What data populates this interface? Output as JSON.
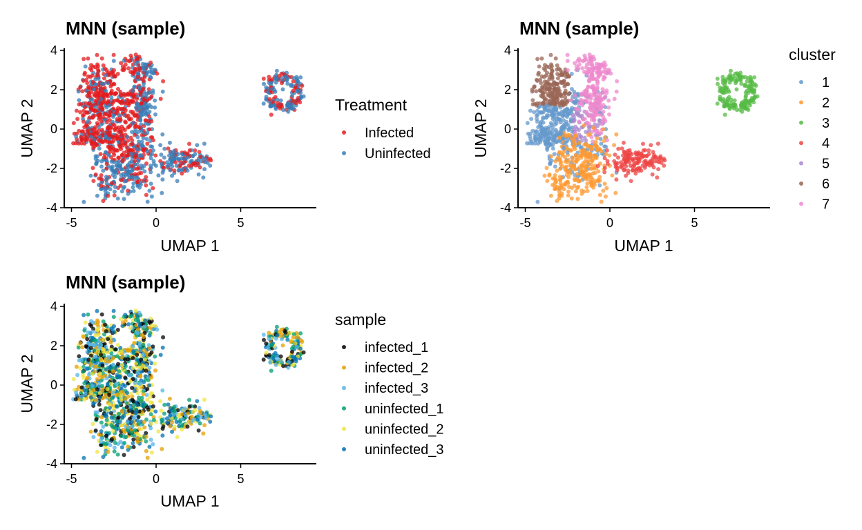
{
  "panels": [
    {
      "title": "MNN (sample)",
      "xlabel": "UMAP 1",
      "ylabel": "UMAP 2",
      "legend": {
        "title": "Treatment",
        "items": [
          {
            "label": "Infected",
            "color": "#e41a1c"
          },
          {
            "label": "Uninfected",
            "color": "#377eb8"
          }
        ]
      }
    },
    {
      "title": "MNN (sample)",
      "xlabel": "UMAP 1",
      "ylabel": "UMAP 2",
      "legend": {
        "title": "cluster",
        "items": [
          {
            "label": "1",
            "color": "#6699cc"
          },
          {
            "label": "2",
            "color": "#ff9933"
          },
          {
            "label": "3",
            "color": "#55bb44"
          },
          {
            "label": "4",
            "color": "#ee4444"
          },
          {
            "label": "5",
            "color": "#aa88cc"
          },
          {
            "label": "6",
            "color": "#996655"
          },
          {
            "label": "7",
            "color": "#ee88cc"
          }
        ]
      }
    },
    {
      "title": "MNN (sample)",
      "xlabel": "UMAP 1",
      "ylabel": "UMAP 2",
      "legend": {
        "title": "sample",
        "items": [
          {
            "label": "infected_1",
            "color": "#000000"
          },
          {
            "label": "infected_2",
            "color": "#e69f00"
          },
          {
            "label": "infected_3",
            "color": "#56b4e9"
          },
          {
            "label": "uninfected_1",
            "color": "#009e73"
          },
          {
            "label": "uninfected_2",
            "color": "#f0e442"
          },
          {
            "label": "uninfected_3",
            "color": "#0072b2"
          }
        ]
      }
    }
  ],
  "chart_data": [
    {
      "type": "scatter",
      "title": "MNN (sample)",
      "xlabel": "UMAP 1",
      "ylabel": "UMAP 2",
      "xlim": [
        -5,
        9.3
      ],
      "ylim": [
        -4.1,
        4.1
      ],
      "xticks": [
        -5,
        0,
        5
      ],
      "yticks": [
        -4,
        -2,
        0,
        2,
        4
      ],
      "color_by": "Treatment",
      "legend_position": "right",
      "grid": false,
      "series": [
        {
          "name": "Infected",
          "color": "#e41a1c"
        },
        {
          "name": "Uninfected",
          "color": "#377eb8"
        }
      ]
    },
    {
      "type": "scatter",
      "title": "MNN (sample)",
      "xlabel": "UMAP 1",
      "ylabel": "UMAP 2",
      "xlim": [
        -5,
        9.3
      ],
      "ylim": [
        -4.1,
        4.1
      ],
      "xticks": [
        -5,
        0,
        5
      ],
      "yticks": [
        -4,
        -2,
        0,
        2,
        4
      ],
      "color_by": "cluster",
      "legend_position": "right",
      "grid": false,
      "series": [
        {
          "name": "1",
          "color": "#6699cc"
        },
        {
          "name": "2",
          "color": "#ff9933"
        },
        {
          "name": "3",
          "color": "#55bb44"
        },
        {
          "name": "4",
          "color": "#ee4444"
        },
        {
          "name": "5",
          "color": "#aa88cc"
        },
        {
          "name": "6",
          "color": "#996655"
        },
        {
          "name": "7",
          "color": "#ee88cc"
        }
      ]
    },
    {
      "type": "scatter",
      "title": "MNN (sample)",
      "xlabel": "UMAP 1",
      "ylabel": "UMAP 2",
      "xlim": [
        -5,
        9.3
      ],
      "ylim": [
        -4.1,
        4.1
      ],
      "xticks": [
        -5,
        0,
        5
      ],
      "yticks": [
        -4,
        -2,
        0,
        2,
        4
      ],
      "color_by": "sample",
      "legend_position": "right",
      "grid": false,
      "series": [
        {
          "name": "infected_1",
          "color": "#000000"
        },
        {
          "name": "infected_2",
          "color": "#e69f00"
        },
        {
          "name": "infected_3",
          "color": "#56b4e9"
        },
        {
          "name": "uninfected_1",
          "color": "#009e73"
        },
        {
          "name": "uninfected_2",
          "color": "#f0e442"
        },
        {
          "name": "uninfected_3",
          "color": "#0072b2"
        }
      ]
    }
  ]
}
